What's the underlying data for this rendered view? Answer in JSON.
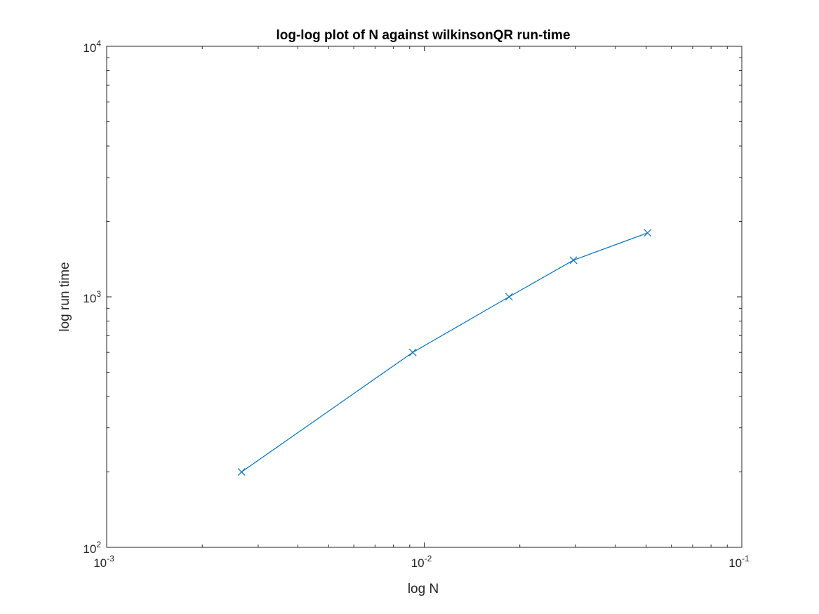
{
  "chart_data": {
    "type": "line",
    "title": "log-log plot of N against wilkinsonQR run-time",
    "xlabel": "log N",
    "ylabel": "log run time",
    "x_scale": "log",
    "y_scale": "log",
    "xlim": [
      0.001,
      0.1
    ],
    "ylim": [
      100,
      10000
    ],
    "x_ticks": [
      {
        "value": 0.001,
        "base": "10",
        "exp": "-3"
      },
      {
        "value": 0.01,
        "base": "10",
        "exp": "-2"
      },
      {
        "value": 0.1,
        "base": "10",
        "exp": "-1"
      }
    ],
    "y_ticks": [
      {
        "value": 100,
        "base": "10",
        "exp": "2"
      },
      {
        "value": 1000,
        "base": "10",
        "exp": "3"
      },
      {
        "value": 10000,
        "base": "10",
        "exp": "4"
      }
    ],
    "grid": false,
    "box": true,
    "series": [
      {
        "color": "#0072BD",
        "marker": "x",
        "points": [
          {
            "x": 0.00266,
            "y": 200
          },
          {
            "x": 0.0092,
            "y": 600
          },
          {
            "x": 0.0185,
            "y": 1000
          },
          {
            "x": 0.0295,
            "y": 1400
          },
          {
            "x": 0.0505,
            "y": 1800
          }
        ]
      }
    ]
  }
}
